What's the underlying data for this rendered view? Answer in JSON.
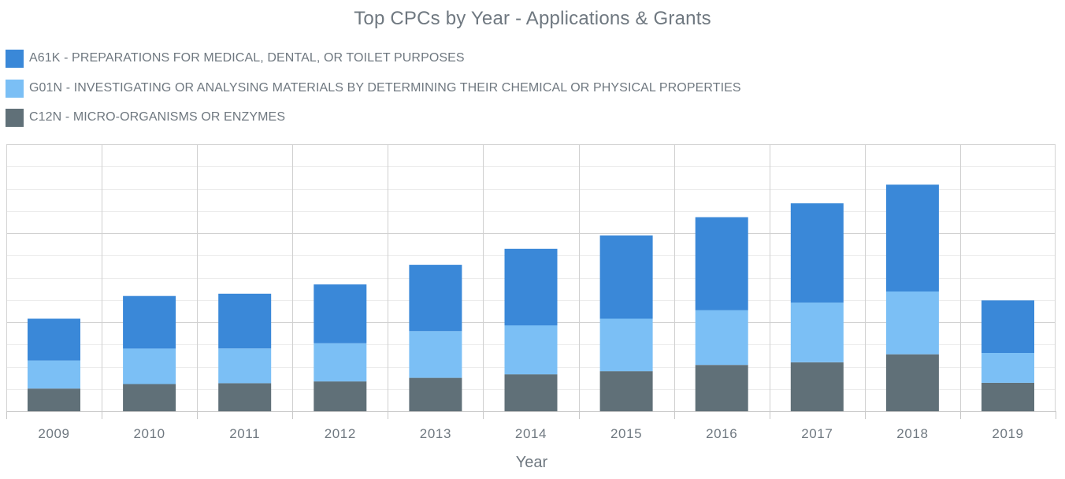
{
  "chart_data": {
    "type": "bar",
    "stacked": true,
    "title": "Top CPCs by Year - Applications & Grants",
    "xlabel": "Year",
    "ylabel": "",
    "categories": [
      "2009",
      "2010",
      "2011",
      "2012",
      "2013",
      "2014",
      "2015",
      "2016",
      "2017",
      "2018",
      "2019"
    ],
    "series": [
      {
        "name": "A61K - PREPARATIONS FOR MEDICAL, DENTAL, OR TOILET PURPOSES",
        "color": "#3a88d8",
        "values": [
          470,
          590,
          615,
          660,
          745,
          860,
          935,
          1045,
          1115,
          1200,
          590
        ]
      },
      {
        "name": "G01N - INVESTIGATING OR ANALYSING MATERIALS BY DETERMINING THEIR CHEMICAL OR PHYSICAL PROPERTIES",
        "color": "#7bbff5",
        "values": [
          315,
          400,
          390,
          430,
          525,
          550,
          590,
          615,
          670,
          705,
          335
        ]
      },
      {
        "name": "C12N - MICRO-ORGANISMS OR ENZYMES",
        "color": "#607078",
        "values": [
          255,
          305,
          315,
          335,
          375,
          415,
          450,
          520,
          550,
          640,
          320
        ]
      }
    ],
    "ylim": [
      0,
      3000
    ],
    "yaxis_visible": false,
    "grid": true,
    "legend_position": "top-left"
  }
}
